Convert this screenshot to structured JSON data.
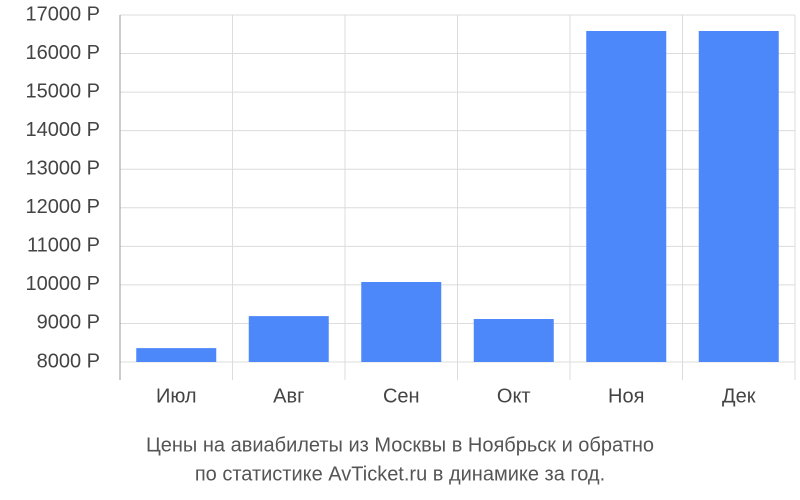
{
  "chart_data": {
    "type": "bar",
    "title": [
      "Цены на авиабилеты из Москвы в Ноябрьск и обратно",
      "по статистике AvTicket.ru в динамике за год."
    ],
    "categories": [
      "Июл",
      "Авг",
      "Сен",
      "Окт",
      "Ноя",
      "Дек"
    ],
    "values": [
      8360,
      9190,
      10075,
      9115,
      16585,
      16585
    ],
    "color": "#4d88fb",
    "ylim": [
      8000,
      17000
    ],
    "yticks": [
      {
        "value": 8000,
        "label": "8000 Р"
      },
      {
        "value": 9000,
        "label": "9000 Р"
      },
      {
        "value": 10000,
        "label": "10000 Р"
      },
      {
        "value": 11000,
        "label": "11000 Р"
      },
      {
        "value": 12000,
        "label": "12000 Р"
      },
      {
        "value": 13000,
        "label": "13000 Р"
      },
      {
        "value": 14000,
        "label": "14000 Р"
      },
      {
        "value": 15000,
        "label": "15000 Р"
      },
      {
        "value": 16000,
        "label": "16000 Р"
      },
      {
        "value": 17000,
        "label": "17000 Р"
      }
    ],
    "grid": true
  }
}
